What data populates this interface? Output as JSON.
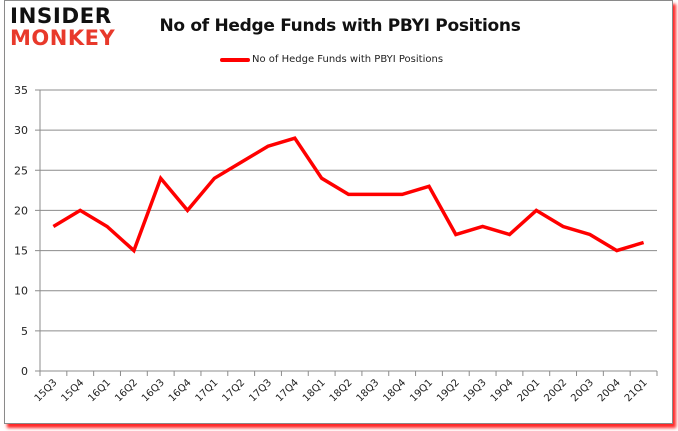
{
  "logo": {
    "line1": "INSIDER",
    "line2": "MONKEY"
  },
  "chart_data": {
    "type": "line",
    "title": "No of Hedge Funds with PBYI Positions",
    "xlabel": "",
    "ylabel": "",
    "ylim": [
      0,
      35
    ],
    "yticks": [
      0,
      5,
      10,
      15,
      20,
      25,
      30,
      35
    ],
    "grid": true,
    "legend_position": "top",
    "categories": [
      "15Q3",
      "15Q4",
      "16Q1",
      "16Q2",
      "16Q3",
      "16Q4",
      "17Q1",
      "17Q2",
      "17Q3",
      "17Q4",
      "18Q1",
      "18Q2",
      "18Q3",
      "18Q4",
      "19Q1",
      "19Q2",
      "19Q3",
      "19Q4",
      "20Q1",
      "20Q2",
      "20Q3",
      "20Q4",
      "21Q1"
    ],
    "series": [
      {
        "name": "No of Hedge Funds with PBYI Positions",
        "color": "#ff0000",
        "values": [
          18,
          20,
          18,
          15,
          24,
          20,
          24,
          26,
          28,
          29,
          24,
          22,
          22,
          22,
          23,
          17,
          18,
          17,
          20,
          18,
          17,
          15,
          16
        ]
      }
    ]
  }
}
